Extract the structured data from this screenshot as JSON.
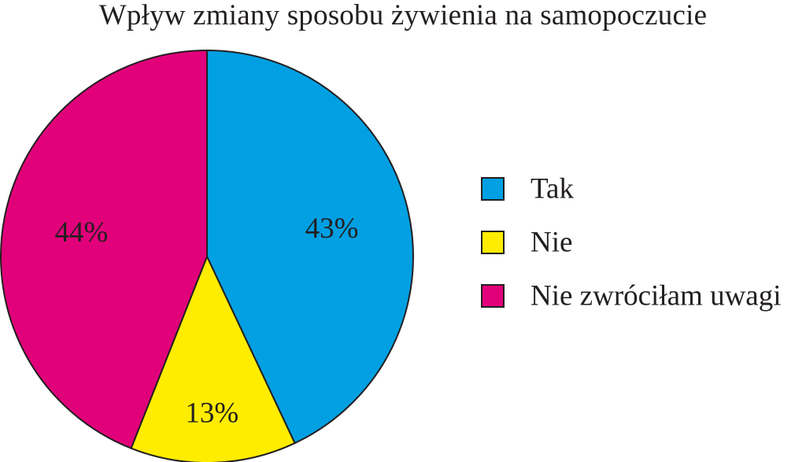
{
  "chart_data": {
    "type": "pie",
    "title": "Wpływ zmiany sposobu żywienia na samopoczucie",
    "slices": [
      {
        "name": "Tak",
        "value": 43,
        "label": "43%",
        "color": "#00a0e3"
      },
      {
        "name": "Nie",
        "value": 13,
        "label": "13%",
        "color": "#ffed00"
      },
      {
        "name": "Nie zwróciłam uwagi",
        "value": 44,
        "label": "44%",
        "color": "#e2007a"
      }
    ],
    "legend_position": "right",
    "start": "top",
    "direction": "clockwise"
  }
}
